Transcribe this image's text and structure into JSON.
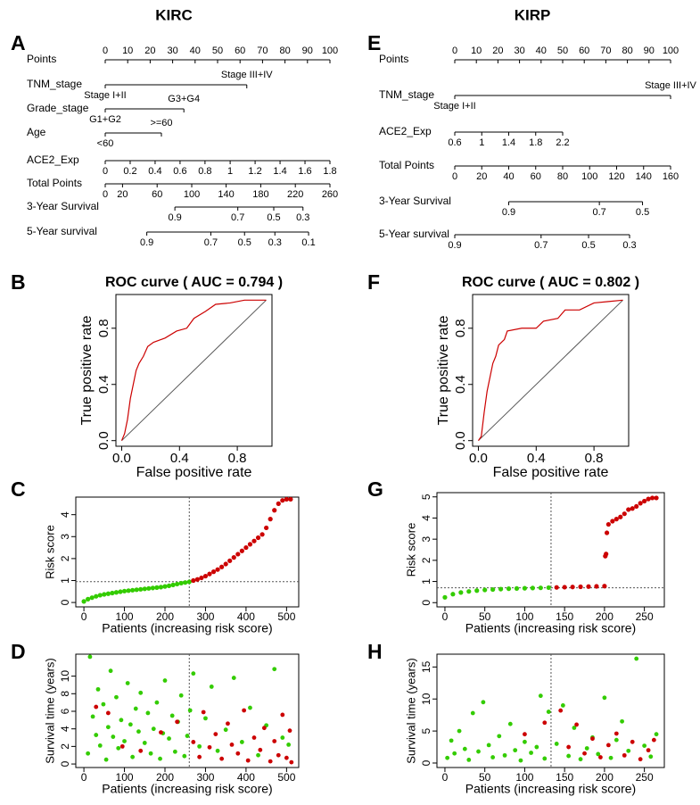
{
  "chart_data": [
    {
      "type": "nomogram",
      "panel": "A",
      "column_title": "KIRC",
      "rows": [
        {
          "label": "Points",
          "ticks": [
            0,
            10,
            20,
            30,
            40,
            50,
            60,
            70,
            80,
            90,
            100
          ]
        },
        {
          "label": "TNM_stage",
          "ticks": [
            "Stage I+II",
            "Stage III+IV"
          ],
          "at": [
            0,
            63
          ]
        },
        {
          "label": "Grade_stage",
          "ticks": [
            "G1+G2",
            "G3+G4"
          ],
          "at": [
            0,
            35
          ]
        },
        {
          "label": "Age",
          "ticks": [
            "<60",
            ">=60"
          ],
          "at": [
            0,
            25
          ]
        },
        {
          "label": "ACE2_Exp",
          "ticks": [
            0,
            0.2,
            0.4,
            0.6,
            0.8,
            1,
            1.2,
            1.4,
            1.6,
            1.8
          ],
          "at": [
            0,
            11.1,
            22.2,
            33.3,
            44.4,
            55.6,
            66.7,
            77.8,
            88.9,
            100
          ]
        },
        {
          "label": "Total Points",
          "ticks": [
            0,
            20,
            60,
            100,
            140,
            180,
            220,
            260
          ],
          "at": [
            0,
            7.7,
            23.1,
            38.5,
            53.8,
            69.2,
            84.6,
            100
          ]
        },
        {
          "label": "3-Year Survival",
          "ticks": [
            0.9,
            0.7,
            0.5,
            0.3
          ],
          "at": [
            31,
            59,
            75,
            88
          ]
        },
        {
          "label": "5-Year survival",
          "ticks": [
            0.9,
            0.7,
            0.5,
            0.3,
            0.1
          ],
          "at": [
            18.5,
            47,
            62,
            75.5,
            90.5
          ]
        }
      ]
    },
    {
      "type": "nomogram",
      "panel": "E",
      "column_title": "KIRP",
      "rows": [
        {
          "label": "Points",
          "ticks": [
            0,
            10,
            20,
            30,
            40,
            50,
            60,
            70,
            80,
            90,
            100
          ]
        },
        {
          "label": "TNM_stage",
          "ticks": [
            "Stage I+II",
            "Stage III+IV"
          ],
          "at": [
            0,
            100
          ]
        },
        {
          "label": "ACE2_Exp",
          "ticks": [
            0.6,
            1,
            1.4,
            1.8,
            2.2
          ],
          "at": [
            0,
            12.5,
            25,
            37.5,
            50
          ]
        },
        {
          "label": "Total Points",
          "ticks": [
            0,
            20,
            40,
            60,
            80,
            100,
            120,
            140,
            160
          ],
          "at": [
            0,
            12.5,
            25,
            37.5,
            50,
            62.5,
            75,
            87.5,
            100
          ]
        },
        {
          "label": "3-Year Survival",
          "ticks": [
            0.9,
            0.7,
            0.5
          ],
          "at": [
            25,
            67,
            87
          ]
        },
        {
          "label": "5-Year survival",
          "ticks": [
            0.9,
            0.7,
            0.5,
            0.3
          ],
          "at": [
            0,
            40,
            62,
            81
          ]
        }
      ]
    },
    {
      "type": "roc",
      "panel": "B",
      "title": "ROC curve ( AUC =  0.794 )",
      "xlabel": "False positive rate",
      "ylabel": "True positive rate",
      "color": "#cc0000",
      "diagonal": true,
      "x": [
        0,
        0.02,
        0.04,
        0.06,
        0.08,
        0.1,
        0.12,
        0.15,
        0.18,
        0.22,
        0.3,
        0.38,
        0.45,
        0.5,
        0.58,
        0.65,
        0.75,
        0.85,
        1
      ],
      "values": [
        0,
        0.05,
        0.15,
        0.3,
        0.4,
        0.5,
        0.55,
        0.6,
        0.67,
        0.7,
        0.73,
        0.78,
        0.8,
        0.87,
        0.92,
        0.97,
        0.98,
        1,
        1
      ],
      "xlim": [
        -0.04,
        1.04
      ],
      "ylim": [
        -0.04,
        1.04
      ],
      "xticks": [
        {
          "value": 0,
          "label": "0.0"
        },
        0.4,
        0.8
      ],
      "yticks": [
        {
          "value": 0,
          "label": "0.0"
        },
        0.4,
        0.8
      ]
    },
    {
      "type": "roc",
      "panel": "F",
      "title": "ROC curve ( AUC =  0.802 )",
      "xlabel": "False positive rate",
      "ylabel": "True positive rate",
      "color": "#cc0000",
      "diagonal": true,
      "x": [
        0,
        0.02,
        0.04,
        0.06,
        0.08,
        0.1,
        0.12,
        0.14,
        0.18,
        0.2,
        0.3,
        0.4,
        0.45,
        0.55,
        0.6,
        0.7,
        0.8,
        0.9,
        1
      ],
      "values": [
        0,
        0.03,
        0.2,
        0.35,
        0.45,
        0.55,
        0.6,
        0.68,
        0.72,
        0.78,
        0.8,
        0.8,
        0.85,
        0.87,
        0.93,
        0.93,
        0.98,
        0.99,
        1
      ],
      "xlim": [
        -0.04,
        1.04
      ],
      "ylim": [
        -0.04,
        1.04
      ],
      "xticks": [
        {
          "value": 0,
          "label": "0.0"
        },
        0.4,
        0.8
      ],
      "yticks": [
        {
          "value": 0,
          "label": "0.0"
        },
        0.4,
        0.8
      ]
    },
    {
      "type": "risk_score",
      "panel": "C",
      "xlabel": "Patients (increasing risk score)",
      "ylabel": "Risk score",
      "xlim": [
        -20,
        530
      ],
      "ylim": [
        -0.2,
        4.8
      ],
      "xticks": [
        0,
        100,
        200,
        300,
        400,
        500
      ],
      "yticks": [
        0,
        1,
        2,
        3,
        4
      ],
      "cutoff_x": 260,
      "cutoff_y": 0.95,
      "series": [
        {
          "color": "#33cc00",
          "x": [
            0,
            10,
            20,
            30,
            40,
            50,
            60,
            70,
            80,
            90,
            100,
            110,
            120,
            130,
            140,
            150,
            160,
            170,
            180,
            190,
            200,
            210,
            220,
            230,
            240,
            250,
            260
          ],
          "values": [
            0.05,
            0.15,
            0.22,
            0.28,
            0.33,
            0.37,
            0.4,
            0.43,
            0.46,
            0.49,
            0.52,
            0.54,
            0.56,
            0.58,
            0.6,
            0.62,
            0.64,
            0.66,
            0.68,
            0.7,
            0.73,
            0.76,
            0.8,
            0.84,
            0.88,
            0.91,
            0.94
          ]
        },
        {
          "color": "#cc0000",
          "x": [
            270,
            280,
            290,
            300,
            310,
            320,
            330,
            340,
            350,
            360,
            370,
            380,
            390,
            400,
            410,
            420,
            430,
            440,
            450,
            460,
            470,
            480,
            490,
            500,
            510
          ],
          "values": [
            1.0,
            1.05,
            1.12,
            1.2,
            1.3,
            1.4,
            1.5,
            1.62,
            1.75,
            1.9,
            2.05,
            2.2,
            2.35,
            2.5,
            2.65,
            2.8,
            2.95,
            3.1,
            3.4,
            3.8,
            4.2,
            4.5,
            4.65,
            4.7,
            4.7
          ]
        }
      ]
    },
    {
      "type": "risk_score",
      "panel": "G",
      "xlabel": "Patients (increasing risk score)",
      "ylabel": "Risk score",
      "xlim": [
        -10,
        275
      ],
      "ylim": [
        -0.2,
        5.2
      ],
      "xticks": [
        0,
        50,
        100,
        150,
        200,
        250
      ],
      "yticks": [
        0,
        1,
        2,
        3,
        4,
        5
      ],
      "cutoff_x": 133,
      "cutoff_y": 0.7,
      "series": [
        {
          "color": "#33cc00",
          "x": [
            0,
            10,
            20,
            30,
            40,
            50,
            60,
            70,
            80,
            90,
            100,
            110,
            120,
            130
          ],
          "values": [
            0.25,
            0.4,
            0.48,
            0.53,
            0.57,
            0.6,
            0.62,
            0.64,
            0.66,
            0.67,
            0.68,
            0.69,
            0.7,
            0.71
          ]
        },
        {
          "color": "#cc0000",
          "x": [
            140,
            150,
            160,
            170,
            180,
            190,
            200,
            201,
            202,
            203,
            205,
            210,
            215,
            220,
            225,
            230,
            235,
            240,
            245,
            250,
            255,
            260,
            265
          ],
          "values": [
            0.72,
            0.73,
            0.74,
            0.75,
            0.76,
            0.77,
            0.78,
            2.2,
            2.3,
            3.3,
            3.7,
            3.85,
            3.95,
            4.05,
            4.2,
            4.4,
            4.45,
            4.55,
            4.7,
            4.8,
            4.9,
            4.95,
            4.95
          ]
        }
      ]
    },
    {
      "type": "scatter",
      "panel": "D",
      "xlabel": "Patients (increasing risk score)",
      "ylabel": "Survival time (years)",
      "xlim": [
        -20,
        530
      ],
      "ylim": [
        -0.4,
        12.5
      ],
      "xticks": [
        0,
        100,
        200,
        300,
        400,
        500
      ],
      "yticks": [
        0,
        2,
        4,
        6,
        8,
        10
      ],
      "cutoff_x": 260,
      "series": [
        {
          "color": "#33cc00",
          "x": [
            10,
            15,
            22,
            30,
            35,
            40,
            48,
            55,
            60,
            66,
            72,
            80,
            85,
            92,
            100,
            108,
            115,
            120,
            128,
            135,
            140,
            150,
            158,
            165,
            172,
            180,
            188,
            195,
            200,
            210,
            218,
            225,
            232,
            240,
            248,
            255,
            262,
            270,
            285,
            300,
            315,
            330,
            350,
            370,
            390,
            410,
            430,
            450,
            470,
            490,
            505
          ],
          "values": [
            1.2,
            12.2,
            5.4,
            3.3,
            8.5,
            2.1,
            6.8,
            0.5,
            4.2,
            10.6,
            3.1,
            7.6,
            1.8,
            5.0,
            2.6,
            9.2,
            4.5,
            0.8,
            6.3,
            3.7,
            8.1,
            2.4,
            5.8,
            1.2,
            4.0,
            7.0,
            0.6,
            3.5,
            9.5,
            2.9,
            5.5,
            1.4,
            4.8,
            7.8,
            0.9,
            3.2,
            6.1,
            10.3,
            2.0,
            5.2,
            8.8,
            1.5,
            3.9,
            9.8,
            2.5,
            6.4,
            1.0,
            4.4,
            10.8,
            3.0,
            2.2
          ]
        },
        {
          "color": "#cc0000",
          "x": [
            30,
            60,
            95,
            140,
            190,
            230,
            270,
            285,
            295,
            310,
            325,
            340,
            355,
            365,
            380,
            395,
            405,
            420,
            435,
            445,
            460,
            470,
            480,
            490,
            500,
            508,
            512
          ],
          "values": [
            6.5,
            5.8,
            2.0,
            1.5,
            3.6,
            4.8,
            2.5,
            0.8,
            5.9,
            1.9,
            3.4,
            0.6,
            4.6,
            2.2,
            1.2,
            6.1,
            0.4,
            3.0,
            1.6,
            4.1,
            0.3,
            2.6,
            1.0,
            5.6,
            0.7,
            3.8,
            0.2
          ]
        }
      ]
    },
    {
      "type": "scatter",
      "panel": "H",
      "xlabel": "Patients (increasing risk score)",
      "ylabel": "Survival time (years)",
      "xlim": [
        -10,
        275
      ],
      "ylim": [
        -0.7,
        17
      ],
      "xticks": [
        0,
        50,
        100,
        150,
        200,
        250
      ],
      "yticks": [
        0,
        5,
        10,
        15
      ],
      "cutoff_x": 133,
      "series": [
        {
          "color": "#33cc00",
          "x": [
            3,
            8,
            12,
            18,
            25,
            30,
            35,
            42,
            48,
            55,
            60,
            68,
            75,
            82,
            88,
            95,
            100,
            108,
            115,
            120,
            125,
            130,
            140,
            148,
            155,
            162,
            170,
            178,
            185,
            192,
            200,
            208,
            215,
            222,
            230,
            240,
            250,
            258,
            265
          ],
          "values": [
            0.8,
            3.5,
            1.5,
            5.0,
            2.2,
            0.5,
            7.8,
            1.8,
            9.5,
            2.8,
            0.9,
            4.2,
            1.2,
            6.1,
            2.0,
            0.4,
            3.3,
            1.6,
            2.5,
            10.5,
            0.7,
            8.0,
            3.0,
            9.0,
            1.1,
            5.5,
            0.6,
            2.3,
            4.0,
            1.4,
            10.2,
            0.8,
            3.6,
            6.5,
            1.9,
            16.3,
            2.7,
            1.0,
            4.5
          ]
        },
        {
          "color": "#cc0000",
          "x": [
            100,
            125,
            145,
            155,
            165,
            175,
            185,
            195,
            205,
            215,
            225,
            235,
            245,
            255,
            262
          ],
          "values": [
            4.5,
            6.3,
            8.2,
            2.5,
            6.0,
            1.5,
            3.8,
            0.9,
            2.8,
            4.6,
            1.2,
            3.3,
            0.6,
            2.0,
            3.6
          ]
        }
      ]
    }
  ]
}
